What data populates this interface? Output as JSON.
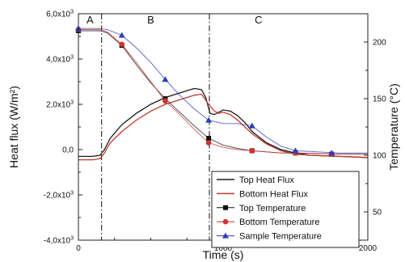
{
  "chart_data": {
    "type": "line",
    "xlabel": "Time (s)",
    "ylabel": "Heat flux (W/m²)",
    "y2label": "Temperature (°C)",
    "xlim": [
      0,
      2000
    ],
    "ylim": [
      -4000,
      6000
    ],
    "y2lim": [
      25,
      225
    ],
    "x_ticks": [
      "0",
      "1000",
      "2000"
    ],
    "y_ticks": [
      {
        "v": 6000,
        "base": "6,0x10",
        "exp": "3"
      },
      {
        "v": 4000,
        "base": "4,0x10",
        "exp": "3"
      },
      {
        "v": 2000,
        "base": "2,0x10",
        "exp": "3"
      },
      {
        "v": 0,
        "base": "0,0",
        "exp": ""
      },
      {
        "v": -2000,
        "base": "-2,0x10",
        "exp": "3"
      },
      {
        "v": -4000,
        "base": "-4,0x10",
        "exp": "3"
      }
    ],
    "y2_ticks": [
      200,
      150,
      100,
      50
    ],
    "grid": false,
    "legend_position": "bottom-right",
    "phases": [
      {
        "label": "A",
        "x": 80
      },
      {
        "label": "B",
        "x": 500
      },
      {
        "label": "C",
        "x": 1245
      }
    ],
    "phase_boundaries": [
      160,
      905
    ],
    "series": [
      {
        "name": "Top Heat Flux",
        "axis": "left",
        "color": "#1a1a1a",
        "marker": "none",
        "x": [
          0,
          100,
          150,
          180,
          220,
          300,
          400,
          500,
          600,
          700,
          800,
          850,
          880,
          910,
          940,
          970,
          1000,
          1050,
          1100,
          1150,
          1200,
          1300,
          1400,
          1500,
          1600,
          1800,
          2000
        ],
        "y": [
          -300,
          -300,
          -250,
          0,
          500,
          1100,
          1600,
          2000,
          2300,
          2500,
          2700,
          2650,
          2300,
          1600,
          1550,
          1650,
          1750,
          1700,
          1500,
          1200,
          800,
          300,
          0,
          -150,
          -250,
          -300,
          -350
        ]
      },
      {
        "name": "Bottom Heat Flux",
        "axis": "left",
        "color": "#c0392b",
        "marker": "none",
        "x": [
          0,
          100,
          150,
          180,
          220,
          300,
          400,
          500,
          600,
          700,
          800,
          850,
          900,
          940,
          970,
          1000,
          1050,
          1100,
          1150,
          1200,
          1300,
          1400,
          1500,
          1600,
          1800,
          2000
        ],
        "y": [
          -450,
          -450,
          -400,
          -150,
          300,
          800,
          1300,
          1700,
          2000,
          2200,
          2400,
          2450,
          2000,
          1700,
          1600,
          1650,
          1550,
          1300,
          1000,
          700,
          250,
          -50,
          -200,
          -250,
          -300,
          -350
        ]
      },
      {
        "name": "Top Temperature",
        "axis": "right",
        "color": "#111111",
        "marker": "square",
        "x": [
          0,
          150,
          200,
          300,
          400,
          500,
          600,
          700,
          800,
          900,
          1000,
          1100,
          1200,
          1300,
          1400,
          1500,
          1800,
          2000
        ],
        "y": [
          210,
          210,
          208,
          197,
          180,
          164,
          150,
          138,
          126,
          115,
          109,
          106,
          104,
          103,
          102,
          102,
          101,
          101
        ],
        "marker_x": [
          0,
          300,
          600,
          900,
          1200,
          1500,
          1750
        ],
        "marker_y": [
          210,
          197,
          150,
          115,
          104,
          102,
          101
        ]
      },
      {
        "name": "Bottom Temperature",
        "axis": "right",
        "color": "#d23030",
        "marker": "circle",
        "x": [
          0,
          150,
          200,
          300,
          400,
          500,
          600,
          700,
          800,
          900,
          1000,
          1100,
          1200,
          1300,
          1400,
          1500,
          1800,
          2000
        ],
        "y": [
          211,
          211,
          209,
          198,
          182,
          165,
          148,
          136,
          123,
          111,
          107,
          105,
          104,
          103,
          102,
          102,
          101,
          101
        ],
        "marker_x": [
          0,
          300,
          600,
          900,
          1200,
          1500,
          1750
        ],
        "marker_y": [
          211,
          198,
          148,
          111,
          104,
          102,
          101
        ]
      },
      {
        "name": "Sample Temperature",
        "axis": "right",
        "color": "#2a3db5",
        "marker": "triangle",
        "x": [
          0,
          150,
          200,
          300,
          400,
          500,
          600,
          700,
          800,
          900,
          1000,
          1100,
          1200,
          1300,
          1400,
          1500,
          1800,
          2000
        ],
        "y": [
          212,
          212,
          211,
          206,
          195,
          182,
          167,
          153,
          141,
          131,
          128,
          128,
          126,
          116,
          108,
          104,
          102,
          102
        ],
        "marker_x": [
          0,
          300,
          600,
          900,
          1200,
          1500,
          1750
        ],
        "marker_y": [
          212,
          206,
          167,
          131,
          126,
          104,
          102
        ]
      }
    ]
  }
}
